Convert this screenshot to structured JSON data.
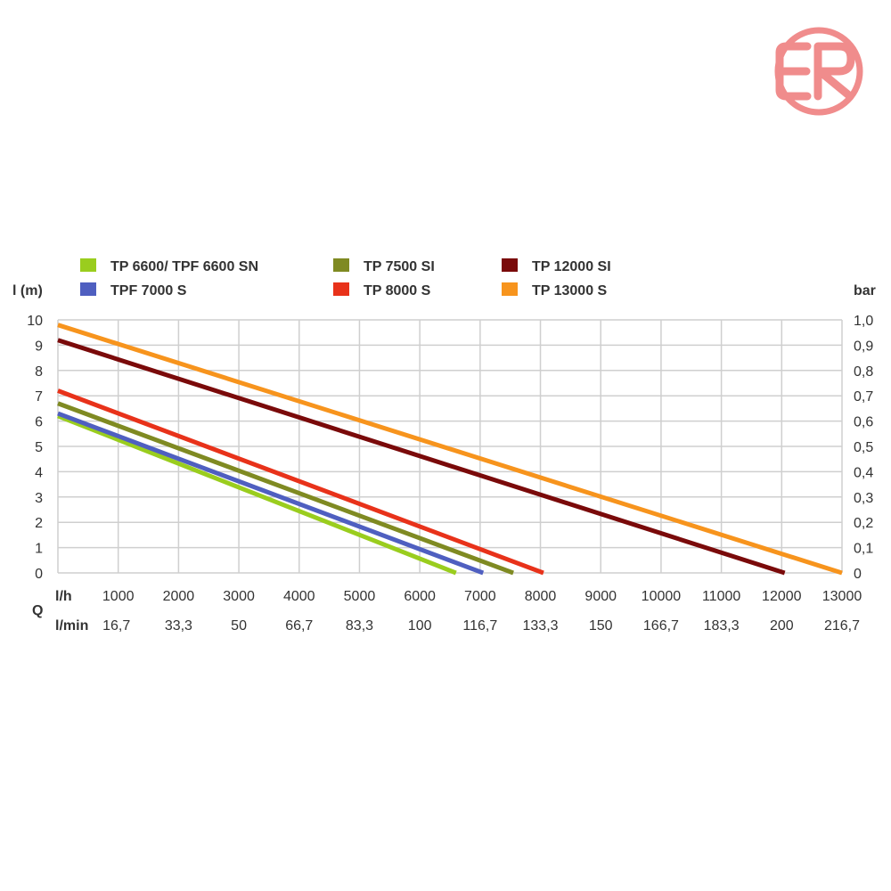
{
  "logo": {
    "letters": "CR",
    "color": "#f08c8c"
  },
  "chart_data": {
    "type": "line",
    "y_left_label": "l (m)",
    "y_right_label": "bar",
    "x_row_label_lh": "l/h",
    "x_row_label_lmin": "l/min",
    "x_q_label": "Q",
    "ylim": [
      0,
      10
    ],
    "xlim": [
      0,
      13000
    ],
    "grid": true,
    "legend_placement": "top",
    "y_ticks": [
      0,
      1,
      2,
      3,
      4,
      5,
      6,
      7,
      8,
      9,
      10
    ],
    "y_ticks_labels": [
      "0",
      "1",
      "2",
      "3",
      "4",
      "5",
      "6",
      "7",
      "8",
      "9",
      "10"
    ],
    "y_right_ticks_labels": [
      "0",
      "0,1",
      "0,2",
      "0,3",
      "0,4",
      "0,5",
      "0,6",
      "0,7",
      "0,8",
      "0,9",
      "1,0"
    ],
    "x_ticks": [
      1000,
      2000,
      3000,
      4000,
      5000,
      6000,
      7000,
      8000,
      9000,
      10000,
      11000,
      12000,
      13000
    ],
    "x_ticks_labels": [
      "1000",
      "2000",
      "3000",
      "4000",
      "5000",
      "6000",
      "7000",
      "8000",
      "9000",
      "10000",
      "11000",
      "12000",
      "13000"
    ],
    "x_lmin_labels": [
      "16,7",
      "33,3",
      "50",
      "66,7",
      "83,3",
      "100",
      "116,7",
      "133,3",
      "150",
      "166,7",
      "183,3",
      "200",
      "216,7"
    ],
    "series": [
      {
        "name": "TP 6600/ TPF 6600 SN",
        "color": "#9acd1e",
        "x": [
          0,
          6600
        ],
        "y": [
          6.2,
          0
        ]
      },
      {
        "name": "TP 7500 SI",
        "color": "#7f8a22",
        "x": [
          0,
          7550
        ],
        "y": [
          6.7,
          0
        ]
      },
      {
        "name": "TP 12000 SI",
        "color": "#7a0a0a",
        "x": [
          0,
          12050
        ],
        "y": [
          9.2,
          0
        ]
      },
      {
        "name": "TPF 7000 S",
        "color": "#4f5fc0",
        "x": [
          0,
          7050
        ],
        "y": [
          6.3,
          0
        ]
      },
      {
        "name": "TP 8000 S",
        "color": "#e8321a",
        "x": [
          0,
          8050
        ],
        "y": [
          7.2,
          0
        ]
      },
      {
        "name": "TP 13000 S",
        "color": "#f7941d",
        "x": [
          0,
          13000
        ],
        "y": [
          9.8,
          0
        ]
      }
    ]
  }
}
